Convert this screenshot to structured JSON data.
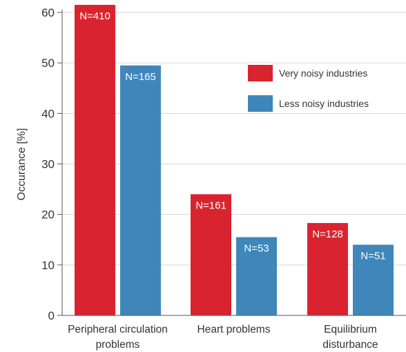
{
  "chart_data": {
    "type": "bar",
    "title": "",
    "xlabel": "",
    "ylabel": "Occurance [%]",
    "ylim": [
      0,
      60
    ],
    "yticks": [
      "0",
      "10",
      "20",
      "30",
      "40",
      "50",
      "60"
    ],
    "grid": true,
    "legend_position": "top-right",
    "categories": [
      [
        "Peripheral circulation",
        "problems"
      ],
      [
        "Heart problems"
      ],
      [
        "Equilibrium",
        "disturbance"
      ]
    ],
    "series": [
      {
        "name": "Very noisy industries",
        "color": "#d9242f",
        "values": [
          61.5,
          24,
          18.3
        ],
        "labels": [
          "N=410",
          "N=161",
          "N=128"
        ]
      },
      {
        "name": "Less noisy industries",
        "color": "#3f86bb",
        "values": [
          49.5,
          15.5,
          14
        ],
        "labels": [
          "N=165",
          "N=53",
          "N=51"
        ]
      }
    ]
  }
}
